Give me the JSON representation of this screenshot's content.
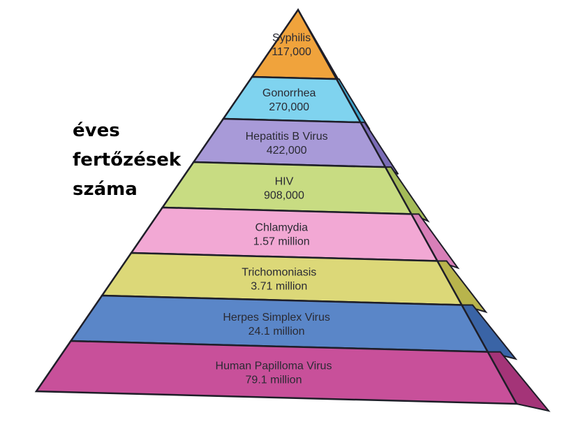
{
  "side_label": {
    "line1": "éves",
    "line2": "fertőzések",
    "line3": "száma"
  },
  "levels": [
    {
      "name": "Syphilis",
      "value": "117,000",
      "color": "#f0a33c",
      "side_color": "#b87820"
    },
    {
      "name": "Gonorrhea",
      "value": "270,000",
      "color": "#7fd3ef",
      "side_color": "#3fa6cc"
    },
    {
      "name": "Hepatitis B Virus",
      "value": "422,000",
      "color": "#a89ad8",
      "side_color": "#7a6cb6"
    },
    {
      "name": "HIV",
      "value": "908,000",
      "color": "#c8dc82",
      "side_color": "#a4bb58"
    },
    {
      "name": "Chlamydia",
      "value": "1.57 million",
      "color": "#f2a8d4",
      "side_color": "#d87fb8"
    },
    {
      "name": "Trichomoniasis",
      "value": "3.71 million",
      "color": "#dcd878",
      "side_color": "#b8b44c"
    },
    {
      "name": "Herpes Simplex Virus",
      "value": "24.1 million",
      "color": "#5a86c8",
      "side_color": "#3a64a6"
    },
    {
      "name": "Human Papilloma Virus",
      "value": "79.1 million",
      "color": "#c8509a",
      "side_color": "#a43478"
    }
  ]
}
